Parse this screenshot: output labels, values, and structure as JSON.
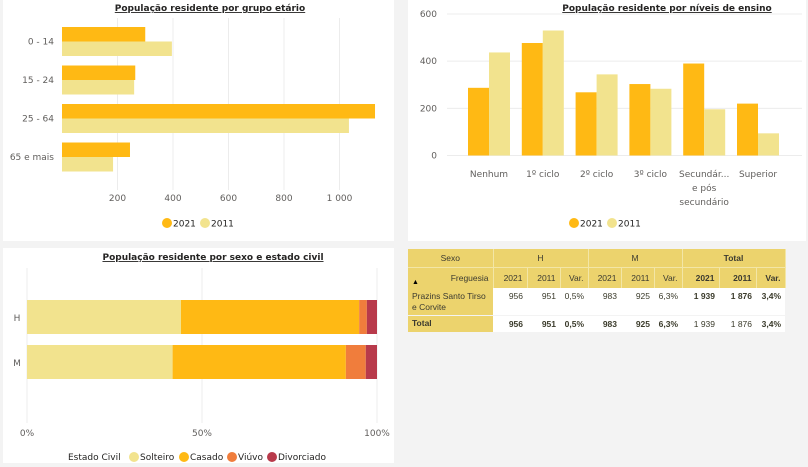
{
  "colors": {
    "y2021": "#FFB914",
    "y2011": "#F2E38E",
    "solteiro": "#F2E38E",
    "casado": "#FFB914",
    "viuvo": "#F07D3C",
    "divorciado": "#B83A4B",
    "table_header": "#ECD36D"
  },
  "chart_data": [
    {
      "type": "bar",
      "orientation": "horizontal",
      "title": "População residente por grupo etário",
      "categories": [
        "0 - 14",
        "15 - 24",
        "25 - 64",
        "65 e mais"
      ],
      "series": [
        {
          "name": "2021",
          "values": [
            300,
            264,
            1128,
            245
          ]
        },
        {
          "name": "2011",
          "values": [
            396,
            260,
            1034,
            184
          ]
        }
      ],
      "xlim": [
        0,
        1150
      ],
      "xticks": [
        200,
        400,
        600,
        800,
        1000
      ],
      "xtick_labels": [
        "200",
        "400",
        "600",
        "800",
        "1 000"
      ],
      "grid": true,
      "legend": {
        "position": "bottom",
        "entries": [
          "2021",
          "2011"
        ]
      }
    },
    {
      "type": "bar",
      "orientation": "vertical",
      "title": "População residente por níveis de ensino",
      "categories": [
        "Nenhum",
        "1º ciclo",
        "2º ciclo",
        "3º ciclo",
        "Secundár... e pós secundário",
        "Superior"
      ],
      "category_label_lines": [
        [
          "Nenhum"
        ],
        [
          "1º ciclo"
        ],
        [
          "2º ciclo"
        ],
        [
          "3º ciclo"
        ],
        [
          "Secundár...",
          "e pós",
          "secundário"
        ],
        [
          "Superior"
        ]
      ],
      "series": [
        {
          "name": "2021",
          "values": [
            287,
            477,
            268,
            303,
            390,
            220
          ]
        },
        {
          "name": "2011",
          "values": [
            437,
            530,
            344,
            283,
            196,
            94
          ]
        }
      ],
      "ylim": [
        0,
        600
      ],
      "yticks": [
        0,
        200,
        400,
        600
      ],
      "grid": true,
      "legend": {
        "position": "bottom",
        "entries": [
          "2021",
          "2011"
        ]
      }
    },
    {
      "type": "bar",
      "orientation": "horizontal",
      "stacked": "100%",
      "title": "População residente por sexo e estado civil",
      "categories": [
        "H",
        "M"
      ],
      "series": [
        {
          "name": "Solteiro",
          "values": [
            44.0,
            41.6
          ]
        },
        {
          "name": "Casado",
          "values": [
            50.9,
            49.5
          ]
        },
        {
          "name": "Viúvo",
          "values": [
            2.2,
            5.7
          ]
        },
        {
          "name": "Divorciado",
          "values": [
            2.9,
            3.2
          ]
        }
      ],
      "xlim": [
        0,
        100
      ],
      "xticks": [
        0,
        50,
        100
      ],
      "xtick_labels": [
        "0%",
        "50%",
        "100%"
      ],
      "grid": true,
      "legend": {
        "position": "bottom",
        "title": "Estado Civil",
        "entries": [
          "Solteiro",
          "Casado",
          "Viúvo",
          "Divorciado"
        ]
      }
    }
  ],
  "table": {
    "header_row1": {
      "sexo": "Sexo",
      "h": "H",
      "m": "M",
      "total": "Total"
    },
    "header_row2": {
      "freguesia": "Freguesia",
      "cols": [
        "2021",
        "2011",
        "Var.",
        "2021",
        "2011",
        "Var.",
        "2021",
        "2011",
        "Var."
      ]
    },
    "sort_icon": "sort-ascending-icon",
    "rows": [
      {
        "name": "Prazins Santo Tirso e Corvite",
        "values": [
          "956",
          "951",
          "0,5%",
          "983",
          "925",
          "6,3%",
          "1 939",
          "1 876",
          "3,4%"
        ]
      }
    ],
    "total": {
      "name": "Total",
      "values": [
        "956",
        "951",
        "0,5%",
        "983",
        "925",
        "6,3%",
        "1 939",
        "1 876",
        "3,4%"
      ]
    }
  }
}
